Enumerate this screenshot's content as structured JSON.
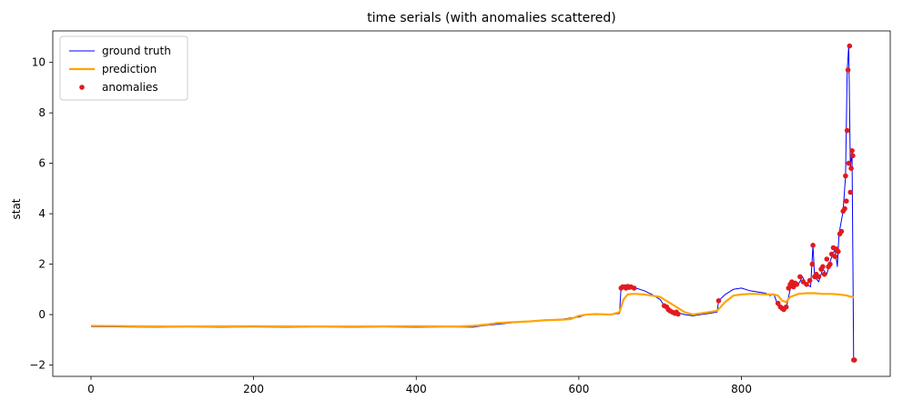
{
  "chart_data": {
    "type": "line",
    "title": "time serials (with anomalies scattered)",
    "xlabel": "",
    "ylabel": "stat",
    "xlim": [
      -47,
      983
    ],
    "ylim": [
      -2.45,
      11.25
    ],
    "xticks": [
      0,
      200,
      400,
      600,
      800
    ],
    "yticks": [
      -2,
      0,
      2,
      4,
      6,
      8,
      10
    ],
    "grid": false,
    "legend_position": "upper left",
    "series": [
      {
        "name": "ground truth",
        "type": "line",
        "color": "#0000ff",
        "x": [
          0,
          40,
          80,
          120,
          160,
          200,
          240,
          280,
          320,
          360,
          400,
          440,
          470,
          480,
          500,
          520,
          540,
          560,
          580,
          600,
          610,
          620,
          640,
          650,
          652,
          655,
          660,
          665,
          670,
          680,
          690,
          700,
          705,
          710,
          715,
          720,
          725,
          730,
          740,
          750,
          760,
          770,
          772,
          780,
          790,
          800,
          810,
          820,
          830,
          835,
          840,
          845,
          850,
          855,
          860,
          865,
          870,
          875,
          880,
          885,
          888,
          890,
          895,
          900,
          905,
          910,
          915,
          918,
          920,
          925,
          928,
          930,
          932,
          934,
          936,
          938
        ],
        "y": [
          -0.48,
          -0.49,
          -0.5,
          -0.49,
          -0.5,
          -0.49,
          -0.5,
          -0.49,
          -0.5,
          -0.49,
          -0.5,
          -0.49,
          -0.5,
          -0.45,
          -0.38,
          -0.32,
          -0.28,
          -0.22,
          -0.18,
          -0.1,
          0.0,
          0.02,
          0.0,
          0.05,
          1.1,
          1.1,
          1.08,
          1.12,
          1.05,
          0.95,
          0.8,
          0.6,
          0.35,
          0.25,
          0.15,
          0.1,
          0.05,
          0.0,
          -0.05,
          0.0,
          0.05,
          0.1,
          0.55,
          0.8,
          1.0,
          1.05,
          0.95,
          0.9,
          0.85,
          0.75,
          0.8,
          0.35,
          0.25,
          0.25,
          1.0,
          1.3,
          1.2,
          1.5,
          1.2,
          1.1,
          2.75,
          1.5,
          1.3,
          1.8,
          1.6,
          2.2,
          2.6,
          1.9,
          3.2,
          4.1,
          5.5,
          9.7,
          10.65,
          5.8,
          6.5,
          -1.8
        ]
      },
      {
        "name": "prediction",
        "type": "line",
        "color": "#ffa500",
        "x": [
          0,
          100,
          200,
          300,
          400,
          450,
          470,
          490,
          500,
          520,
          540,
          560,
          580,
          590,
          600,
          610,
          620,
          640,
          650,
          655,
          660,
          665,
          670,
          680,
          690,
          700,
          710,
          720,
          730,
          740,
          750,
          760,
          770,
          780,
          790,
          800,
          810,
          820,
          830,
          840,
          845,
          850,
          855,
          860,
          870,
          880,
          890,
          900,
          910,
          920,
          930,
          938
        ],
        "y": [
          -0.45,
          -0.47,
          -0.46,
          -0.47,
          -0.46,
          -0.47,
          -0.45,
          -0.38,
          -0.33,
          -0.3,
          -0.27,
          -0.22,
          -0.2,
          -0.18,
          -0.05,
          0.0,
          0.02,
          0.0,
          0.1,
          0.6,
          0.8,
          0.82,
          0.82,
          0.8,
          0.75,
          0.7,
          0.5,
          0.3,
          0.1,
          0.0,
          0.05,
          0.1,
          0.15,
          0.5,
          0.75,
          0.8,
          0.82,
          0.82,
          0.8,
          0.8,
          0.75,
          0.55,
          0.5,
          0.7,
          0.82,
          0.85,
          0.85,
          0.82,
          0.82,
          0.8,
          0.75,
          0.68
        ]
      },
      {
        "name": "anomalies",
        "type": "scatter",
        "color": "#e31a1c",
        "x": [
          652,
          654,
          656,
          658,
          660,
          662,
          664,
          668,
          705,
          708,
          710,
          712,
          715,
          718,
          720,
          722,
          772,
          845,
          848,
          850,
          852,
          855,
          858,
          860,
          862,
          864,
          866,
          868,
          872,
          876,
          880,
          884,
          887,
          888,
          890,
          892,
          895,
          898,
          900,
          902,
          905,
          907,
          909,
          911,
          913,
          915,
          917,
          919,
          921,
          923,
          925,
          927,
          928,
          929,
          930,
          931,
          932,
          933,
          934,
          935,
          936,
          937,
          938,
          939
        ],
        "y": [
          1.05,
          1.1,
          1.1,
          1.05,
          1.12,
          1.08,
          1.1,
          1.05,
          0.35,
          0.3,
          0.2,
          0.15,
          0.1,
          0.05,
          0.1,
          0.02,
          0.55,
          0.45,
          0.3,
          0.25,
          0.2,
          0.3,
          1.05,
          1.2,
          1.3,
          1.1,
          1.25,
          1.2,
          1.5,
          1.3,
          1.2,
          1.35,
          2.0,
          2.75,
          1.5,
          1.6,
          1.5,
          1.8,
          1.9,
          1.6,
          2.2,
          1.9,
          2.0,
          2.4,
          2.65,
          2.3,
          2.6,
          2.5,
          3.2,
          3.3,
          4.1,
          4.2,
          5.5,
          4.5,
          7.3,
          9.7,
          6.0,
          10.65,
          4.85,
          5.8,
          6.5,
          6.3,
          -1.8,
          -1.8
        ]
      }
    ]
  }
}
